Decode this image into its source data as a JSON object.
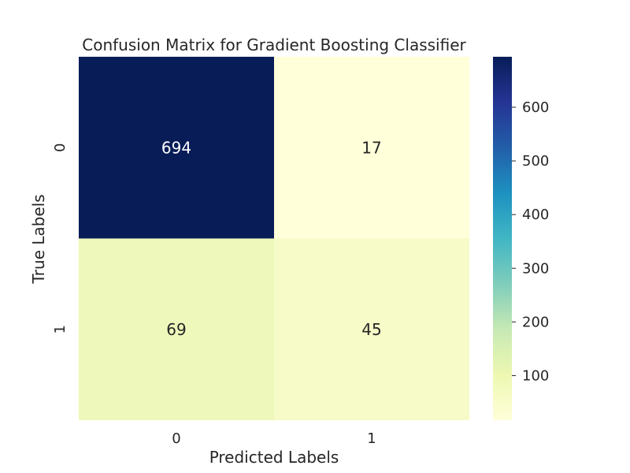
{
  "chart_data": {
    "type": "heatmap",
    "title": "Confusion Matrix for Gradient Boosting Classifier",
    "xlabel": "Predicted Labels",
    "ylabel": "True Labels",
    "x_categories": [
      "0",
      "1"
    ],
    "y_categories": [
      "0",
      "1"
    ],
    "values": [
      [
        694,
        17
      ],
      [
        69,
        45
      ]
    ],
    "annotations": [
      "694",
      "17",
      "69",
      "45"
    ],
    "colormap": "YlGnBu",
    "colorbar": {
      "range": [
        17,
        694
      ],
      "ticks": [
        100,
        200,
        300,
        400,
        500,
        600
      ],
      "tick_labels": [
        "100",
        "200",
        "300",
        "400",
        "500",
        "600"
      ]
    },
    "cell_colors": [
      "#081d58",
      "#ffffd9",
      "#eef8bb",
      "#f6fbc7"
    ],
    "annotation_colors": [
      "#ffffff",
      "#262626",
      "#262626",
      "#262626"
    ],
    "grid": false
  }
}
